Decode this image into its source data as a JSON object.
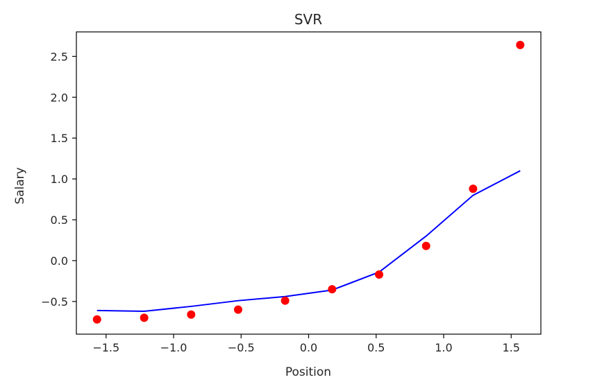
{
  "chart_data": {
    "type": "scatter",
    "title": "SVR",
    "xlabel": "Position",
    "ylabel": "Salary",
    "xlim": [
      -1.72,
      1.72
    ],
    "ylim": [
      -0.9,
      2.8
    ],
    "xticks": [
      -1.5,
      -1.0,
      -0.5,
      0.0,
      0.5,
      1.0,
      1.5
    ],
    "xtick_labels": [
      "−1.5",
      "−1.0",
      "−0.5",
      "0.0",
      "0.5",
      "1.0",
      "1.5"
    ],
    "yticks": [
      -0.5,
      0.0,
      0.5,
      1.0,
      1.5,
      2.0,
      2.5
    ],
    "ytick_labels": [
      "−0.5",
      "0.0",
      "0.5",
      "1.0",
      "1.5",
      "2.0",
      "2.5"
    ],
    "grid": false,
    "legend": "none",
    "colors": {
      "points": "#ff0000",
      "line": "#0000ff",
      "axes": "#000000"
    },
    "series": [
      {
        "kind": "scatter",
        "x": [
          -1.567,
          -1.218,
          -0.87,
          -0.522,
          -0.174,
          0.174,
          0.522,
          0.87,
          1.218,
          1.567
        ],
        "y": [
          -0.72,
          -0.7,
          -0.66,
          -0.6,
          -0.49,
          -0.35,
          -0.17,
          0.18,
          0.88,
          2.64
        ]
      },
      {
        "kind": "line",
        "x": [
          -1.567,
          -1.218,
          -0.87,
          -0.522,
          -0.174,
          0.174,
          0.522,
          0.87,
          1.218,
          1.567
        ],
        "y": [
          -0.61,
          -0.62,
          -0.56,
          -0.49,
          -0.44,
          -0.36,
          -0.14,
          0.3,
          0.8,
          1.1
        ]
      }
    ]
  }
}
